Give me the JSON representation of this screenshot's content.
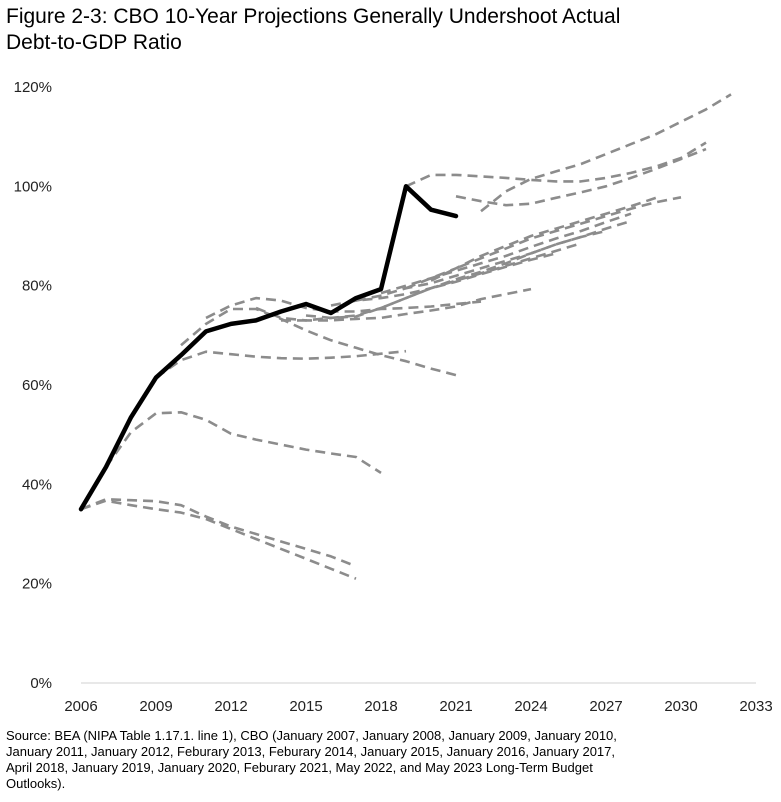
{
  "title_lines": [
    "Figure 2-3: CBO 10-Year Projections Generally Undershoot Actual",
    "Debt-to-GDP Ratio"
  ],
  "source_lines": [
    "Source: BEA (NIPA Table 1.17.1. line 1), CBO (January 2007, January 2008, January 2009, January 2010,",
    "January 2011, January 2012, Feburary 2013, Feburary 2014, January 2015, January 2016, January 2017,",
    "April 2018, January 2019, January 2020, Feburary 2021, May 2022, and May 2023 Long-Term Budget",
    "Outlooks)."
  ],
  "colors": {
    "actual": "#000000",
    "projection": "#8c8c8c",
    "axis": "#d0d0d0"
  },
  "chart_data": {
    "type": "line",
    "xlim": [
      2006,
      2033
    ],
    "ylim": [
      0,
      120
    ],
    "x_ticks": [
      2006,
      2009,
      2012,
      2015,
      2018,
      2021,
      2024,
      2027,
      2030,
      2033
    ],
    "y_ticks": [
      {
        "value": 0,
        "label": "0%"
      },
      {
        "value": 20,
        "label": "20%"
      },
      {
        "value": 40,
        "label": "40%"
      },
      {
        "value": 60,
        "label": "60%"
      },
      {
        "value": 80,
        "label": "80%"
      },
      {
        "value": 100,
        "label": "100%"
      },
      {
        "value": 120,
        "label": "120%"
      }
    ],
    "grid": false,
    "legend": "none",
    "actual": {
      "x": [
        2006,
        2007,
        2008,
        2009,
        2010,
        2011,
        2012,
        2013,
        2014,
        2015,
        2016,
        2017,
        2018,
        2019,
        2020,
        2021
      ],
      "y": [
        35,
        43.5,
        53.5,
        61.5,
        66,
        70.8,
        72.3,
        73,
        74.8,
        76.3,
        74.5,
        77.5,
        79.3,
        100,
        95.3,
        94
      ]
    },
    "projections": [
      {
        "x": [
          2006,
          2007,
          2008,
          2009,
          2010,
          2011,
          2012,
          2013,
          2014,
          2015,
          2016,
          2017
        ],
        "y": [
          35,
          37,
          36.8,
          36.6,
          35.8,
          33.5,
          31.5,
          30,
          28.5,
          27,
          25.5,
          23.5
        ]
      },
      {
        "x": [
          2006,
          2007,
          2008,
          2009,
          2010,
          2011,
          2012,
          2013,
          2014,
          2015,
          2016,
          2017
        ],
        "y": [
          35,
          36.7,
          35.8,
          35,
          34.3,
          33,
          31,
          29,
          27,
          25,
          23,
          21
        ]
      },
      {
        "x": [
          2007,
          2008,
          2009,
          2010,
          2011,
          2012,
          2013,
          2014,
          2015,
          2016,
          2017,
          2018
        ],
        "y": [
          43.5,
          50.5,
          54.3,
          54.5,
          53,
          50.2,
          49,
          48,
          47,
          46.2,
          45.5,
          42.3
        ]
      },
      {
        "x": [
          2009,
          2010,
          2011,
          2012,
          2013,
          2014,
          2015,
          2016,
          2017,
          2018,
          2019
        ],
        "y": [
          61.5,
          65,
          66.7,
          66.2,
          65.7,
          65.4,
          65.3,
          65.5,
          65.8,
          66.3,
          66.8
        ]
      },
      {
        "x": [
          2010,
          2011,
          2012,
          2013,
          2014,
          2015,
          2016,
          2017,
          2018,
          2019,
          2020,
          2021
        ],
        "y": [
          68,
          72.3,
          75.3,
          75.3,
          73.3,
          71,
          69,
          67.5,
          66,
          64.8,
          63.3,
          62
        ]
      },
      {
        "x": [
          2011,
          2012,
          2013,
          2014,
          2015,
          2016,
          2017,
          2018,
          2019,
          2020,
          2021,
          2022
        ],
        "y": [
          73.5,
          76,
          77.5,
          77,
          75.5,
          74.8,
          74.8,
          75.3,
          75.5,
          75.8,
          76.3,
          76.8
        ]
      },
      {
        "x": [
          2013,
          2014,
          2015,
          2016,
          2017,
          2018,
          2019,
          2020,
          2021,
          2022,
          2023,
          2024
        ],
        "y": [
          75.5,
          73.5,
          73,
          73,
          73.3,
          73.5,
          74.3,
          75,
          75.8,
          77.3,
          78.3,
          79.3
        ]
      },
      {
        "x": [
          2014,
          2015,
          2016,
          2017,
          2018,
          2019,
          2020,
          2021,
          2022,
          2023,
          2024,
          2025
        ],
        "y": [
          73,
          73,
          73.5,
          74,
          75.5,
          77.5,
          79.5,
          80.8,
          82.3,
          83.8,
          85.2,
          86.5
        ]
      },
      {
        "x": [
          2015,
          2016,
          2017,
          2018,
          2019,
          2020,
          2021,
          2022,
          2023,
          2024,
          2025,
          2026
        ],
        "y": [
          74,
          73.5,
          73.8,
          75.5,
          77.5,
          79.5,
          81,
          82.5,
          84,
          85.5,
          87,
          88.5
        ]
      },
      {
        "x": [
          2016,
          2017,
          2018,
          2019,
          2020,
          2021,
          2022,
          2023,
          2024,
          2025,
          2026,
          2027
        ],
        "y": [
          76,
          77,
          77.5,
          78.3,
          79.5,
          81.3,
          82.8,
          84.5,
          86.5,
          88.3,
          89.8,
          91
        ]
      },
      {
        "x": [
          2017,
          2018,
          2019,
          2020,
          2021,
          2022,
          2023,
          2024,
          2025,
          2026,
          2027,
          2028
        ],
        "y": [
          77,
          78,
          79.5,
          80.5,
          82,
          83.5,
          85,
          86.5,
          88.3,
          89.8,
          91.5,
          93
        ]
      },
      {
        "x": [
          2018,
          2019,
          2020,
          2021,
          2022,
          2023,
          2024,
          2025,
          2026,
          2027,
          2028
        ],
        "y": [
          78.5,
          80,
          81.5,
          83,
          84.5,
          86,
          87.8,
          89.5,
          91,
          92.8,
          94.5
        ]
      },
      {
        "x": [
          2019,
          2020,
          2021,
          2022,
          2023,
          2024,
          2025,
          2026,
          2027,
          2028,
          2029
        ],
        "y": [
          79.5,
          81.5,
          83.5,
          86,
          88,
          90,
          91.5,
          93,
          94.5,
          96,
          97.7
        ]
      },
      {
        "x": [
          2020,
          2021,
          2022,
          2023,
          2024,
          2025,
          2026,
          2027,
          2028,
          2029,
          2030
        ],
        "y": [
          81,
          83.5,
          85.5,
          87.5,
          89.5,
          91,
          92.5,
          94,
          95.5,
          96.8,
          97.8
        ]
      },
      {
        "x": [
          2021,
          2022,
          2023,
          2024,
          2025,
          2026,
          2027,
          2028,
          2029,
          2030,
          2031
        ],
        "y": [
          98,
          97,
          96.2,
          96.5,
          97.7,
          98.8,
          100,
          101.7,
          103.5,
          105.5,
          107.5
        ]
      },
      {
        "x": [
          2022,
          2023,
          2024,
          2025,
          2026,
          2027,
          2028,
          2029,
          2030,
          2031,
          2032
        ],
        "y": [
          95,
          99,
          101.5,
          103,
          104.5,
          106.5,
          108.5,
          110.5,
          113,
          115.5,
          118.5
        ]
      },
      {
        "x": [
          2019,
          2020,
          2021,
          2022,
          2023,
          2024,
          2025,
          2026,
          2027,
          2028,
          2029,
          2030,
          2031
        ],
        "y": [
          100,
          102.3,
          102.3,
          102,
          101.7,
          101.3,
          101,
          101,
          101.7,
          102.7,
          104,
          105.7,
          108.8
        ]
      }
    ]
  }
}
